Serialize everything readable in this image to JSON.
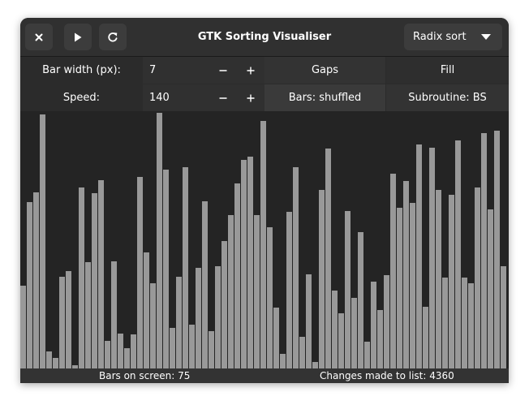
{
  "window": {
    "title": "GTK Sorting Visualiser"
  },
  "headerbar": {
    "close_icon": "close-icon",
    "play_icon": "play-icon",
    "refresh_icon": "refresh-icon",
    "algorithm_dropdown": {
      "selected": "Radix sort",
      "icon": "chevron-down-icon"
    }
  },
  "controls": {
    "bar_width": {
      "label": "Bar width (px):",
      "value": "7",
      "decrement": "−",
      "increment": "+"
    },
    "speed": {
      "label": "Speed:",
      "value": "140",
      "decrement": "−",
      "increment": "+"
    },
    "gaps_button": "Gaps",
    "fill_button": "Fill",
    "bars_button": "Bars: shuffled",
    "subroutine_button": "Subroutine: BS"
  },
  "visualiser": {
    "bar_color": "#999999",
    "bar_heights": [
      0.321,
      0.646,
      0.684,
      0.987,
      0.066,
      0.041,
      0.356,
      0.378,
      0.013,
      0.703,
      0.413,
      0.681,
      0.731,
      0.107,
      0.416,
      0.136,
      0.079,
      0.132,
      0.744,
      0.451,
      0.331,
      0.994,
      0.773,
      0.158,
      0.356,
      0.782,
      0.17,
      0.391,
      0.65,
      0.145,
      0.397,
      0.495,
      0.596,
      0.719,
      0.811,
      0.823,
      0.596,
      0.962,
      0.549,
      0.237,
      0.057,
      0.609,
      0.782,
      0.123,
      0.366,
      0.025,
      0.694,
      0.855,
      0.303,
      0.215,
      0.612,
      0.274,
      0.53,
      0.104,
      0.339,
      0.227,
      0.363,
      0.757,
      0.624,
      0.73,
      0.643,
      0.871,
      0.24,
      0.858,
      0.694,
      0.353,
      0.675,
      0.886,
      0.353,
      0.331,
      0.703,
      0.915,
      0.618,
      0.924,
      0.397
    ]
  },
  "statusbar": {
    "bars_on_screen": "Bars on screen: 75",
    "changes_made": "Changes made to list: 4360"
  }
}
